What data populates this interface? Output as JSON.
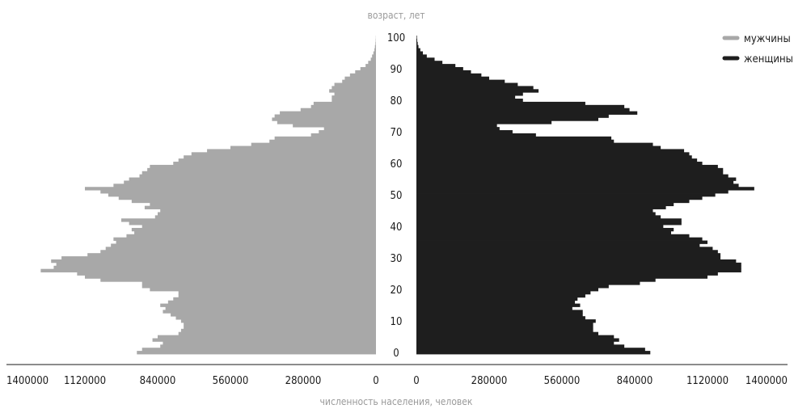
{
  "chart_data": {
    "type": "bar",
    "subtype": "population-pyramid",
    "xlabel": "численность населения, человек",
    "ylabel": "возраст, лет",
    "xlim": [
      0,
      1400000
    ],
    "x_ticks_left": [
      "1400000",
      "1120000",
      "840000",
      "560000",
      "280000",
      "0"
    ],
    "x_ticks_right": [
      "0",
      "280000",
      "560000",
      "840000",
      "1120000",
      "1400000"
    ],
    "y_ticks": [
      "0",
      "10",
      "20",
      "30",
      "40",
      "50",
      "60",
      "70",
      "80",
      "90",
      "100"
    ],
    "legend_position": "top-right",
    "ages": [
      0,
      1,
      2,
      3,
      4,
      5,
      6,
      7,
      8,
      9,
      10,
      11,
      12,
      13,
      14,
      15,
      16,
      17,
      18,
      19,
      20,
      21,
      22,
      23,
      24,
      25,
      26,
      27,
      28,
      29,
      30,
      31,
      32,
      33,
      34,
      35,
      36,
      37,
      38,
      39,
      40,
      41,
      42,
      43,
      44,
      45,
      46,
      47,
      48,
      49,
      50,
      51,
      52,
      53,
      54,
      55,
      56,
      57,
      58,
      59,
      60,
      61,
      62,
      63,
      64,
      65,
      66,
      67,
      68,
      69,
      70,
      71,
      72,
      73,
      74,
      75,
      76,
      77,
      78,
      79,
      80,
      81,
      82,
      83,
      84,
      85,
      86,
      87,
      88,
      89,
      90,
      91,
      92,
      93,
      94,
      95,
      96,
      97,
      98,
      99,
      100
    ],
    "series": [
      {
        "name": "мужчины",
        "color": "#a8a8a8",
        "side": "left",
        "values": [
          920000,
          900000,
          830000,
          820000,
          860000,
          840000,
          760000,
          750000,
          740000,
          740000,
          750000,
          770000,
          790000,
          820000,
          810000,
          830000,
          800000,
          780000,
          760000,
          760000,
          870000,
          900000,
          900000,
          1060000,
          1120000,
          1150000,
          1290000,
          1240000,
          1230000,
          1250000,
          1210000,
          1110000,
          1060000,
          1040000,
          1020000,
          1000000,
          1010000,
          960000,
          930000,
          940000,
          900000,
          950000,
          980000,
          850000,
          840000,
          830000,
          890000,
          870000,
          940000,
          990000,
          1030000,
          1060000,
          1120000,
          1010000,
          970000,
          950000,
          910000,
          900000,
          880000,
          870000,
          780000,
          760000,
          740000,
          710000,
          650000,
          560000,
          480000,
          410000,
          390000,
          250000,
          220000,
          200000,
          320000,
          380000,
          400000,
          390000,
          370000,
          290000,
          250000,
          240000,
          170000,
          170000,
          160000,
          180000,
          170000,
          160000,
          130000,
          120000,
          100000,
          80000,
          60000,
          40000,
          30000,
          20000,
          15000,
          10000,
          6000,
          4000,
          2000,
          1000,
          500
        ]
      },
      {
        "name": "женщины",
        "color": "#1e1e1e",
        "side": "right",
        "values": [
          900000,
          880000,
          800000,
          760000,
          780000,
          760000,
          700000,
          680000,
          680000,
          680000,
          690000,
          650000,
          640000,
          640000,
          600000,
          630000,
          610000,
          620000,
          650000,
          670000,
          700000,
          740000,
          860000,
          920000,
          1120000,
          1160000,
          1250000,
          1250000,
          1250000,
          1230000,
          1170000,
          1170000,
          1160000,
          1140000,
          1090000,
          1120000,
          1100000,
          1050000,
          980000,
          990000,
          950000,
          1020000,
          1020000,
          940000,
          920000,
          910000,
          960000,
          990000,
          1050000,
          1100000,
          1150000,
          1200000,
          1300000,
          1240000,
          1220000,
          1230000,
          1200000,
          1180000,
          1180000,
          1160000,
          1100000,
          1080000,
          1060000,
          1050000,
          1030000,
          940000,
          910000,
          760000,
          750000,
          460000,
          370000,
          320000,
          310000,
          520000,
          700000,
          740000,
          850000,
          820000,
          800000,
          650000,
          410000,
          380000,
          410000,
          470000,
          450000,
          390000,
          340000,
          280000,
          250000,
          210000,
          180000,
          150000,
          100000,
          70000,
          40000,
          25000,
          15000,
          8000,
          5000,
          3000,
          2000
        ]
      }
    ]
  }
}
